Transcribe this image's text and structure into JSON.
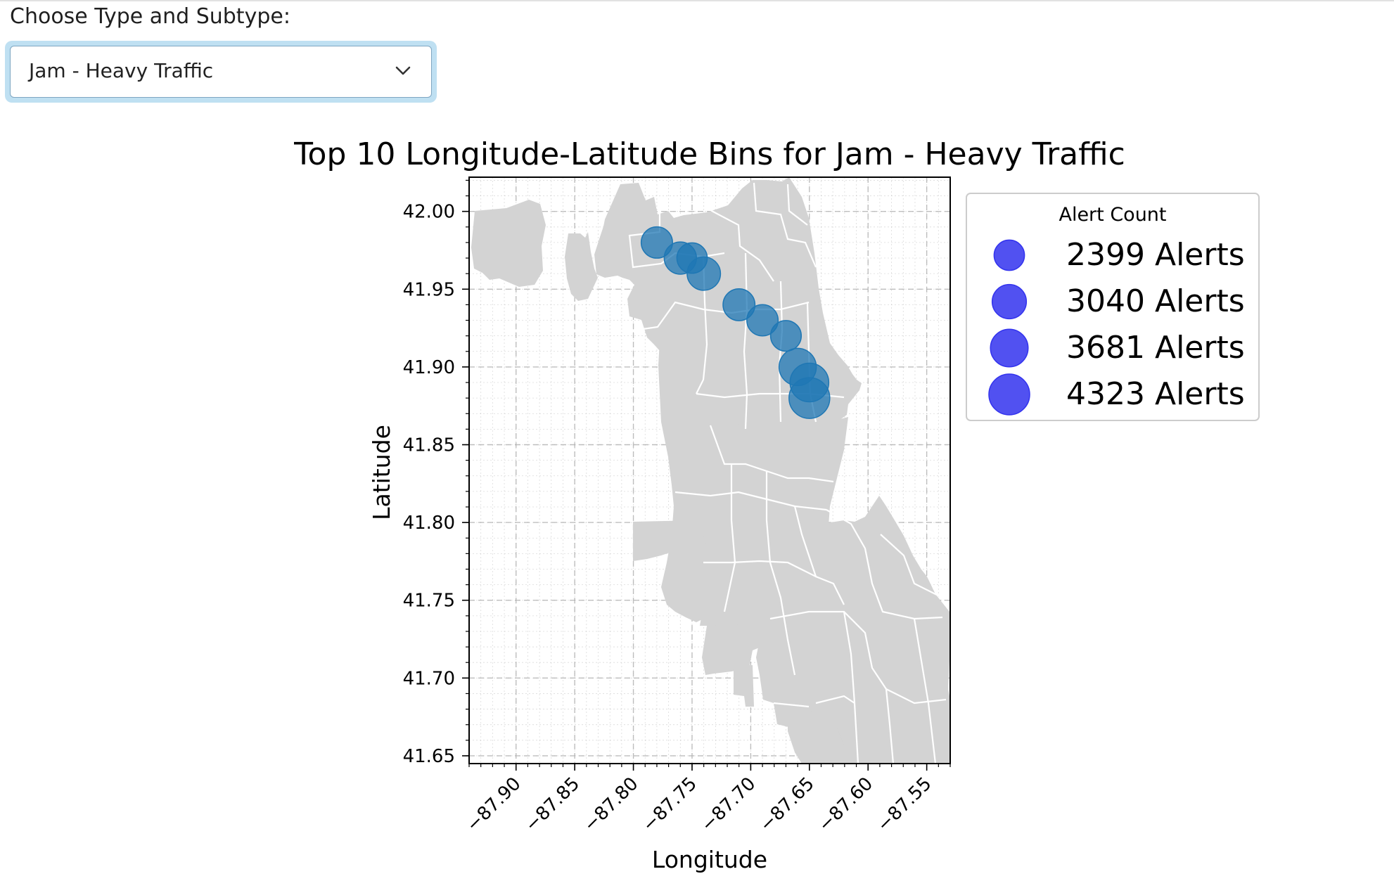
{
  "control": {
    "label": "Choose Type and Subtype:",
    "selected": "Jam - Heavy Traffic",
    "icon": "chevron-down-icon"
  },
  "chart_data": {
    "type": "scatter",
    "title": "Top 10 Longitude-Latitude Bins for Jam - Heavy Traffic",
    "xlabel": "Longitude",
    "ylabel": "Latitude",
    "xlim": [
      -87.94,
      -87.53
    ],
    "ylim": [
      41.645,
      42.022
    ],
    "x_ticks": [
      -87.9,
      -87.85,
      -87.8,
      -87.75,
      -87.7,
      -87.65,
      -87.6,
      -87.55
    ],
    "x_tick_labels": [
      "−87.90",
      "−87.85",
      "−87.80",
      "−87.75",
      "−87.70",
      "−87.65",
      "−87.60",
      "−87.55"
    ],
    "y_ticks": [
      41.65,
      41.7,
      41.75,
      41.8,
      41.85,
      41.9,
      41.95,
      42.0
    ],
    "y_tick_labels": [
      "41.65",
      "41.70",
      "41.75",
      "41.80",
      "41.85",
      "41.90",
      "41.95",
      "42.00"
    ],
    "grid": true,
    "background_map": "Chicago community areas",
    "points": [
      {
        "x": -87.78,
        "y": 41.98,
        "count": 2550
      },
      {
        "x": -87.76,
        "y": 41.97,
        "count": 2700
      },
      {
        "x": -87.75,
        "y": 41.97,
        "count": 2400
      },
      {
        "x": -87.74,
        "y": 41.96,
        "count": 2900
      },
      {
        "x": -87.71,
        "y": 41.94,
        "count": 2650
      },
      {
        "x": -87.69,
        "y": 41.93,
        "count": 2550
      },
      {
        "x": -87.67,
        "y": 41.92,
        "count": 2450
      },
      {
        "x": -87.66,
        "y": 41.9,
        "count": 3600
      },
      {
        "x": -87.65,
        "y": 41.89,
        "count": 3900
      },
      {
        "x": -87.65,
        "y": 41.88,
        "count": 4323
      }
    ],
    "legend": {
      "title": "Alert Count",
      "position": "outside-right",
      "items": [
        {
          "value": 2399,
          "label": "2399 Alerts"
        },
        {
          "value": 3040,
          "label": "3040 Alerts"
        },
        {
          "value": 3681,
          "label": "3681 Alerts"
        },
        {
          "value": 4323,
          "label": "4323 Alerts"
        }
      ]
    },
    "colors": {
      "points": "#1f77b4",
      "legend_markers": "#3333ee",
      "map_fill": "#d3d3d3",
      "map_border": "#ffffff",
      "grid": "#b0b0b0"
    }
  }
}
